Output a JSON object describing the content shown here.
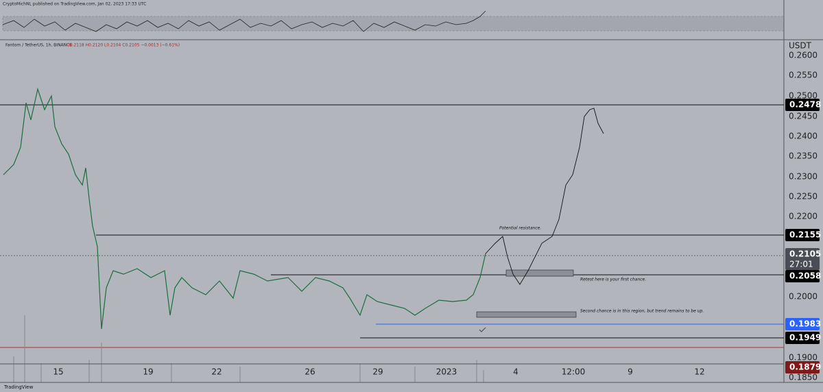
{
  "header": {
    "publisher": "CryptoMichNL published on TradingView.com, Jan 02, 2023 17:33 UTC",
    "symbol": "Fantom / TetherUS, 1h, BINANCE",
    "ohlc": "O0.2118 H0.2120 L0.2104 C0.2105 −0.0013 (−0.61%)"
  },
  "price_axis": {
    "unit": "USDT",
    "ticks": [
      "0.2600",
      "0.2550",
      "0.2500",
      "0.2450",
      "0.2400",
      "0.2350",
      "0.2300",
      "0.2250",
      "0.2200",
      "0.2000",
      "0.1900",
      "0.1850"
    ]
  },
  "price_labels": [
    "0.2478",
    "0.2155",
    "0.2058",
    "0.1983",
    "0.1949",
    "0.1879"
  ],
  "current_price": "0.2105",
  "countdown": "27:01",
  "time_axis": [
    "15",
    "19",
    "22",
    "26",
    "29",
    "2023",
    "4",
    "12:00",
    "9",
    "12"
  ],
  "annotations": [
    "Potential resistance.",
    "Retest here is your first chance.",
    "Second chance is in this region, but trend remains to be up."
  ],
  "footer": "TradingView"
}
